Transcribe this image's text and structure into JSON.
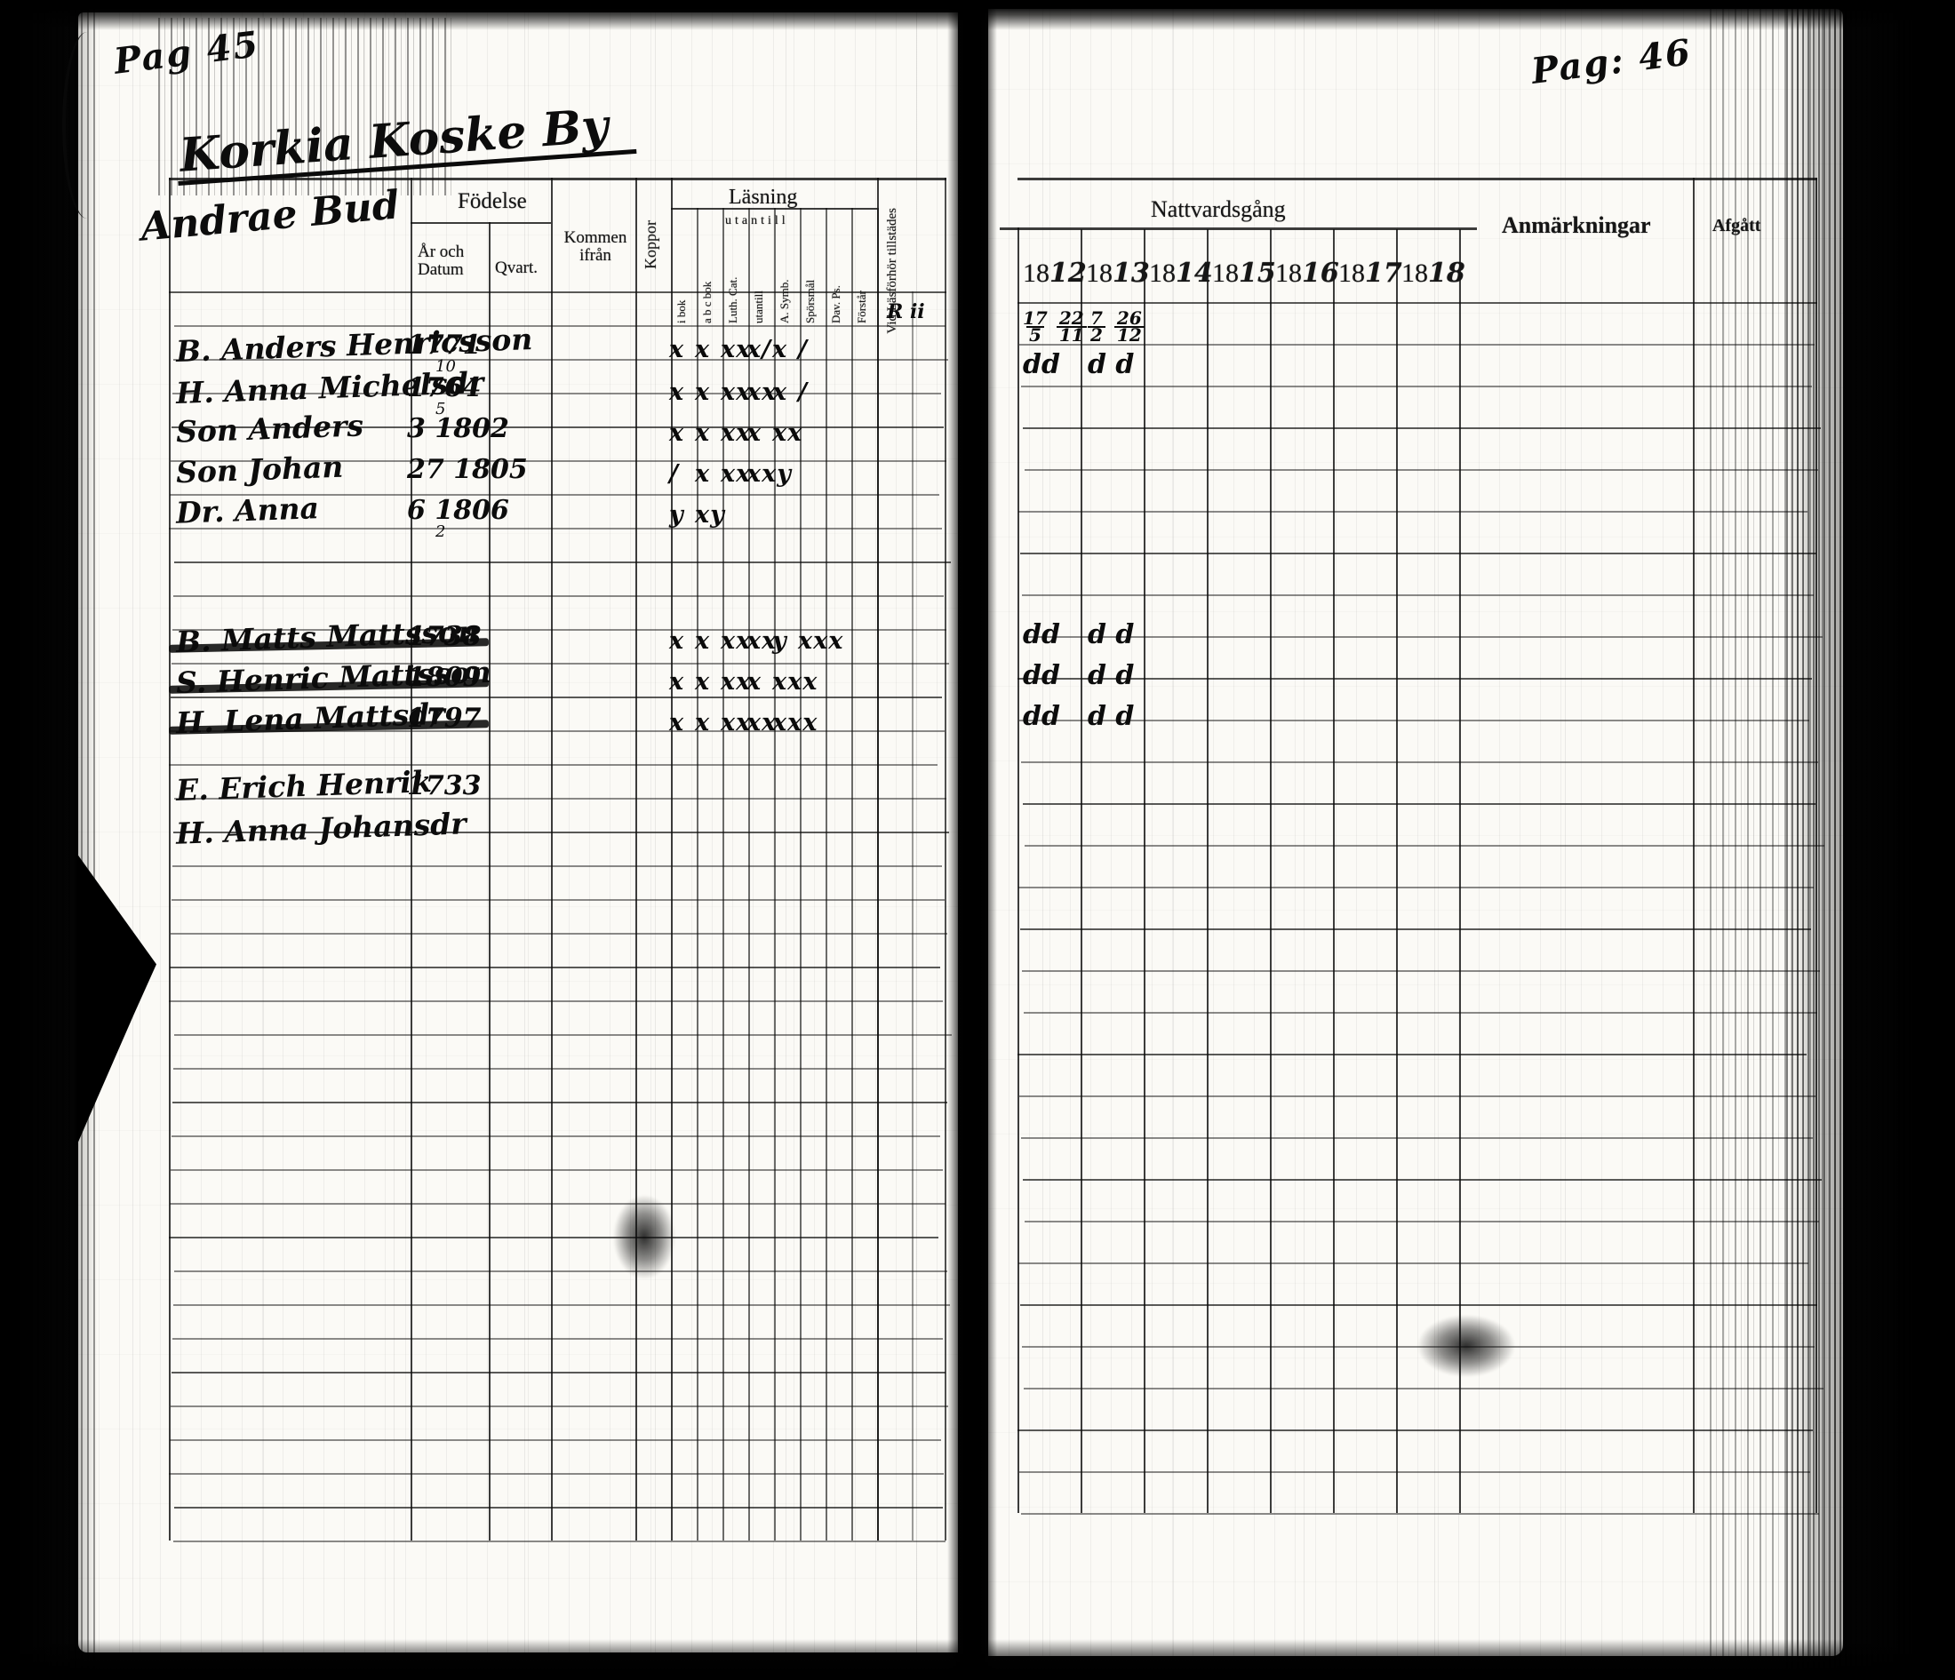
{
  "document_type": "Scanned parish communion ledger, two-page spread",
  "left_page": {
    "page_label": "Pag 45",
    "title": "Korkia Koske By",
    "subtitle": "Andrae Bud",
    "header": {
      "fodelse": "Födelse",
      "ar_och_datum": "År och Datum",
      "qvart": "Qvart.",
      "kommen_ifran": "Kommen ifrån",
      "koppor": "Koppor",
      "lasning": "Läsning",
      "lasning_note": "utantill",
      "lasning_cols": [
        "i bok",
        "a b c bok",
        "Luth. Cat.",
        "utantill",
        "A. Symb.",
        "Spörsmål",
        "Dav. Ps.",
        "Förstår"
      ],
      "vid_lasforhor": "Vid Läsförhör tillstädes",
      "forhor_mark": "R ii"
    },
    "entries": [
      {
        "name": "B. Anders Henricsson",
        "born": "1771",
        "born_sub": "10",
        "struck": false,
        "marks": [
          "x",
          "x",
          "xx",
          "x/",
          "x",
          "/",
          "",
          ""
        ]
      },
      {
        "name": "H. Anna Michelsdr",
        "born": "1764",
        "born_sub": "5",
        "struck": false,
        "marks": [
          "x",
          "x",
          "xx",
          "xx",
          "x",
          "/",
          "",
          ""
        ]
      },
      {
        "name": "Son Anders",
        "born": "3 1802",
        "born_sub": "",
        "struck": false,
        "marks": [
          "x",
          "x",
          "xx",
          "x",
          "xx",
          "",
          "",
          ""
        ]
      },
      {
        "name": "Son Johan",
        "born": "27 1805",
        "born_sub": "",
        "struck": false,
        "marks": [
          "/",
          "x",
          "xx",
          "xxy",
          "",
          "",
          "",
          ""
        ]
      },
      {
        "name": "Dr. Anna",
        "born": "6 1806",
        "born_sub": "2",
        "struck": false,
        "marks": [
          "y",
          "xy",
          "",
          "",
          "",
          "",
          "",
          ""
        ]
      },
      {
        "name": "B. Matts Mattsson",
        "born": "1738",
        "born_sub": "",
        "struck": true,
        "marks": [
          "x",
          "x",
          "xx",
          "xx",
          "y",
          "xxx",
          "",
          ""
        ]
      },
      {
        "name": "S. Henric Mattsson",
        "born": "1809",
        "born_sub": "",
        "struck": true,
        "marks": [
          "x",
          "x",
          "xx",
          "x",
          "xxx",
          "",
          "",
          ""
        ]
      },
      {
        "name": "H. Lena Mattsdr",
        "born": "1797",
        "born_sub": "",
        "struck": true,
        "marks": [
          "x",
          "x",
          "xx",
          "xx",
          "xxx",
          "",
          "",
          ""
        ]
      },
      {
        "name": "E. Erich Henrik",
        "born": "1733",
        "born_sub": "",
        "struck": false,
        "marks": [
          "",
          "",
          "",
          "",
          "",
          "",
          "",
          ""
        ]
      },
      {
        "name": "H. Anna Johansdr",
        "born": "",
        "born_sub": "",
        "struck": false,
        "marks": [
          "",
          "",
          "",
          "",
          "",
          "",
          "",
          ""
        ]
      }
    ]
  },
  "right_page": {
    "page_label": "Pag: 46",
    "header": {
      "nattvardsgang": "Nattvardsgång",
      "years": [
        "1812",
        "1813",
        "1814",
        "1815",
        "1816",
        "1817",
        "1818"
      ],
      "anmarkningar": "Anmärkningar",
      "afgatt": "Afgått"
    },
    "communion_rows": [
      {
        "c1812": "17/5 22/11",
        "c1813": "7/2 26/12"
      },
      {
        "c1812": "dd",
        "c1813": "d d"
      },
      {
        "c1812": "dd",
        "c1813": "d d"
      },
      {
        "c1812": "dd",
        "c1813": "d d"
      },
      {
        "c1812": "dd",
        "c1813": "d d"
      }
    ]
  }
}
